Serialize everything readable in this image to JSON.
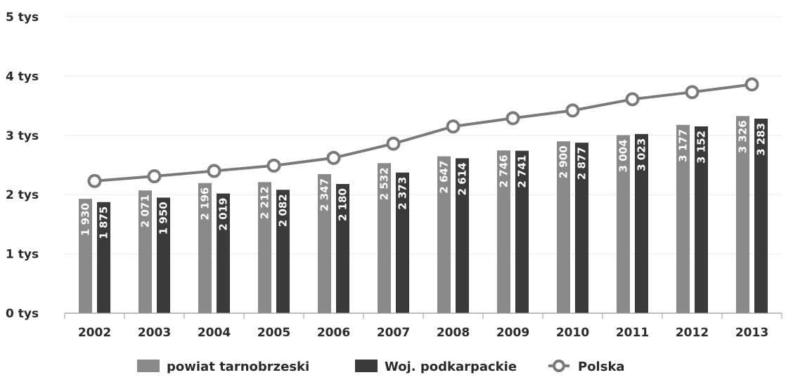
{
  "chart_data": {
    "type": "bar",
    "categories": [
      "2002",
      "2003",
      "2004",
      "2005",
      "2006",
      "2007",
      "2008",
      "2009",
      "2010",
      "2011",
      "2012",
      "2013"
    ],
    "series": [
      {
        "name": "powiat tarnobrzeski",
        "kind": "bar",
        "color": "#8a8a8a",
        "values": [
          1930,
          2071,
          2196,
          2212,
          2347,
          2532,
          2647,
          2746,
          2900,
          3004,
          3177,
          3326
        ],
        "labels": [
          "1 930",
          "2 071",
          "2 196",
          "2 212",
          "2 347",
          "2 532",
          "2 647",
          "2 746",
          "2 900",
          "3 004",
          "3 177",
          "3 326"
        ]
      },
      {
        "name": "Woj. podkarpackie",
        "kind": "bar",
        "color": "#3a3a3a",
        "values": [
          1875,
          1950,
          2019,
          2082,
          2180,
          2373,
          2614,
          2741,
          2877,
          3023,
          3152,
          3283
        ],
        "labels": [
          "1 875",
          "1 950",
          "2 019",
          "2 082",
          "2 180",
          "2 373",
          "2 614",
          "2 741",
          "2 877",
          "3 023",
          "3 152",
          "3 283"
        ]
      },
      {
        "name": "Polska",
        "kind": "line",
        "color": "#7a7a7a",
        "values": [
          2230,
          2310,
          2400,
          2490,
          2620,
          2860,
          3150,
          3290,
          3420,
          3610,
          3730,
          3860
        ]
      }
    ],
    "y_ticks": [
      "0 tys",
      "1 tys",
      "2 tys",
      "3 tys",
      "4 tys",
      "5 tys"
    ],
    "ylim": [
      0,
      5000
    ],
    "grid": true,
    "legend_position": "bottom",
    "title": "",
    "xlabel": "",
    "ylabel": ""
  }
}
